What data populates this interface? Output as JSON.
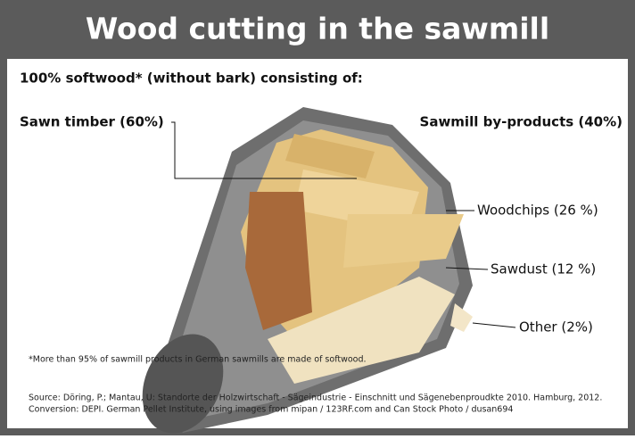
{
  "header": {
    "title": "Wood cutting in the sawmill"
  },
  "subtitle": "100% softwood* (without bark) consisting of:",
  "labels": {
    "sawn_timber": "Sawn timber (60%)",
    "by_products": "Sawmill by-products (40%)",
    "woodchips": "Woodchips (26 %)",
    "sawdust": "Sawdust (12 %)",
    "other": "Other (2%)"
  },
  "footnote": "*More than 95% of sawmill products in German sawmills are made of softwood.",
  "sources": [
    "Source: Döring, P.; Mantau, U: Standorte der Holzwirtschaft - Sägeindustrie - Einschnitt und Sägenebenproudkte 2010. Hamburg, 2012.",
    "Conversion: DEPI. German Pellet Institute, using images from mipan / 123RF.com and Can Stock Photo / dusan694"
  ]
}
